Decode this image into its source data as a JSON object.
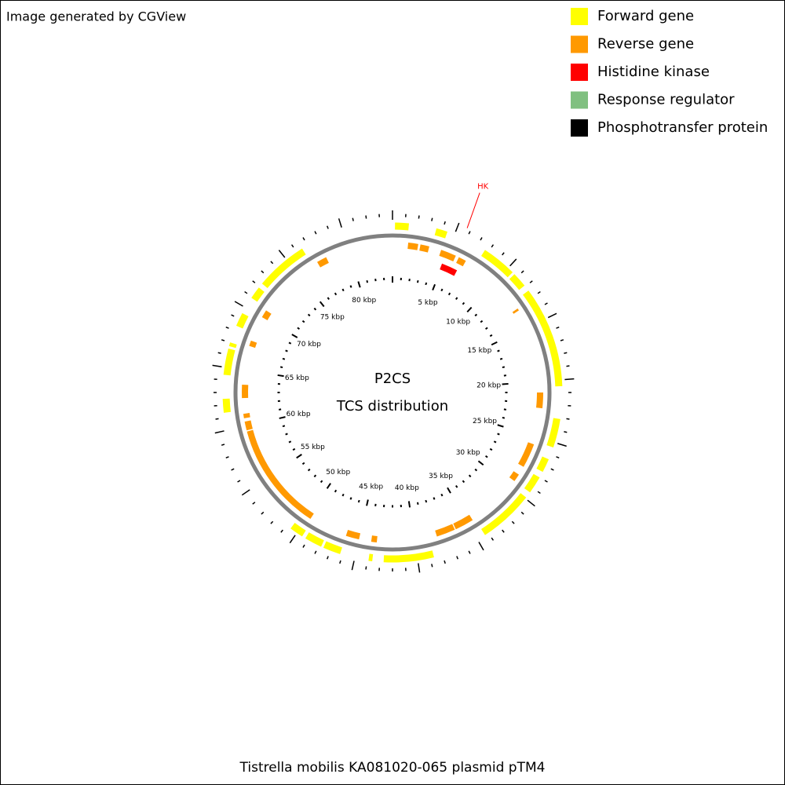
{
  "header": {
    "text": "Image generated by CGView"
  },
  "legend": [
    {
      "label": "Forward gene",
      "color": "#ffff00"
    },
    {
      "label": "Reverse gene",
      "color": "#ff9900"
    },
    {
      "label": "Histidine kinase",
      "color": "#ff0000"
    },
    {
      "label": "Response regulator",
      "color": "#80c080"
    },
    {
      "label": "Phosphotransfer protein",
      "color": "#000000"
    }
  ],
  "map": {
    "title": "P2CS",
    "subtitle": "TCS distribution",
    "range": [
      0,
      84
    ],
    "ruler": [
      {
        "value": 5,
        "label": "5 kbp"
      },
      {
        "value": 10,
        "label": "10 kbp"
      },
      {
        "value": 15,
        "label": "15 kbp"
      },
      {
        "value": 20,
        "label": "20 kbp"
      },
      {
        "value": 25,
        "label": "25 kbp"
      },
      {
        "value": 30,
        "label": "30 kbp"
      },
      {
        "value": 35,
        "label": "35 kbp"
      },
      {
        "value": 40,
        "label": "40 kbp"
      },
      {
        "value": 45,
        "label": "45 kbp"
      },
      {
        "value": 50,
        "label": "50 kbp"
      },
      {
        "value": 55,
        "label": "55 kbp"
      },
      {
        "value": 60,
        "label": "60 kbp"
      },
      {
        "value": 65,
        "label": "65 kbp"
      },
      {
        "value": 70,
        "label": "70 kbp"
      },
      {
        "value": 75,
        "label": "75 kbp"
      },
      {
        "value": 80,
        "label": "80 kbp"
      }
    ],
    "forward_genes": [
      [
        0.2,
        1.3
      ],
      [
        3.5,
        4.4
      ],
      [
        7.7,
        10.5
      ],
      [
        10.7,
        11.9
      ],
      [
        12.4,
        20.5
      ],
      [
        23.1,
        25.4
      ],
      [
        26.4,
        27.5
      ],
      [
        28.0,
        29.4
      ],
      [
        29.9,
        34.3
      ],
      [
        38.7,
        42.7
      ],
      [
        43.6,
        43.9
      ],
      [
        46.2,
        47.6
      ],
      [
        47.8,
        49.2
      ],
      [
        49.5,
        50.6
      ],
      [
        61.4,
        62.5
      ],
      [
        64.4,
        66.5
      ],
      [
        66.7,
        67.0
      ],
      [
        68.4,
        69.5
      ],
      [
        70.9,
        71.9
      ],
      [
        72.3,
        76.5
      ]
    ],
    "reverse_genes": [
      [
        1.4,
        2.3
      ],
      [
        2.5,
        3.3
      ],
      [
        4.4,
        5.8
      ],
      [
        6.1,
        6.8
      ],
      [
        13.1,
        13.3
      ],
      [
        21.0,
        22.4
      ],
      [
        25.7,
        27.9
      ],
      [
        28.7,
        29.4
      ],
      [
        34.5,
        36.2
      ],
      [
        36.3,
        38.0
      ],
      [
        43.4,
        43.9
      ],
      [
        45.0,
        46.2
      ],
      [
        49.7,
        59.5
      ],
      [
        59.6,
        60.4
      ],
      [
        60.7,
        61.1
      ],
      [
        62.5,
        63.7
      ],
      [
        67.2,
        67.7
      ],
      [
        70.0,
        70.7
      ],
      [
        77.0,
        77.9
      ]
    ],
    "histidine_kinases": [
      [
        4.9,
        6.5
      ]
    ],
    "annotation": {
      "label": "HK"
    }
  },
  "caption": "Tistrella mobilis KA081020-065 plasmid pTM4"
}
